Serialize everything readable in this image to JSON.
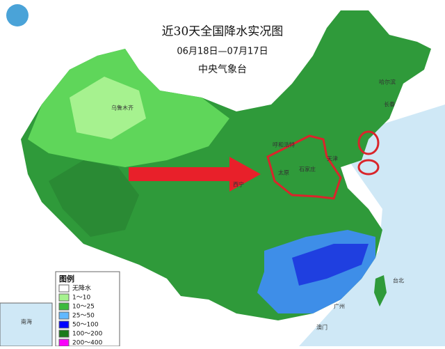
{
  "header": {
    "title": "近30天全国降水实况图",
    "date_range": "06月18日—07月17日",
    "source": "中央气象台"
  },
  "legend": {
    "title": "图例",
    "items": [
      {
        "label": "无降水",
        "color": "#ffffff"
      },
      {
        "label": "1～10",
        "color": "#a6f28f"
      },
      {
        "label": "10～25",
        "color": "#3dba3d"
      },
      {
        "label": "25～50",
        "color": "#61b8ff"
      },
      {
        "label": "50～100",
        "color": "#0000ff"
      },
      {
        "label": "100～200",
        "color": "#1a7a1a"
      },
      {
        "label": "200～400",
        "color": "#fa00fa"
      }
    ]
  },
  "places": [
    {
      "label": "乌鲁木齐"
    },
    {
      "label": "呼和浩特"
    },
    {
      "label": "太原"
    },
    {
      "label": "石家庄"
    },
    {
      "label": "天津"
    },
    {
      "label": "哈尔滨"
    },
    {
      "label": "长春"
    },
    {
      "label": "西宁"
    },
    {
      "label": "台北"
    },
    {
      "label": "广州"
    },
    {
      "label": "澳门"
    },
    {
      "label": "南海"
    }
  ]
}
